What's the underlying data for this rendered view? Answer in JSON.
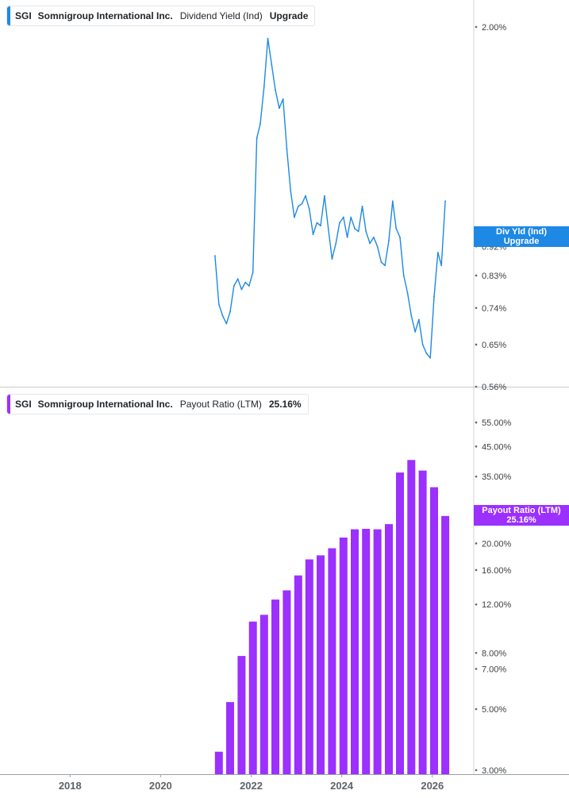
{
  "chart_data": [
    {
      "type": "line",
      "ticker": "SGI",
      "company": "Somnigroup International Inc.",
      "metric": "Dividend Yield (Ind)",
      "value_label": "Upgrade",
      "tag_label": "Div Yld (Ind)",
      "tag_value": "Upgrade",
      "color": "#1e88e5",
      "y_scale": "log",
      "ylim": [
        0.56,
        2.2
      ],
      "y_ticks": [
        "2.00%",
        "0.92%",
        "0.83%",
        "0.74%",
        "0.65%",
        "0.56%"
      ],
      "x": [
        "2021-03",
        "2021-04",
        "2021-05",
        "2021-06",
        "2021-07",
        "2021-08",
        "2021-09",
        "2021-10",
        "2021-11",
        "2021-12",
        "2022-01",
        "2022-02",
        "2022-03",
        "2022-04",
        "2022-05",
        "2022-06",
        "2022-07",
        "2022-08",
        "2022-09",
        "2022-10",
        "2022-11",
        "2022-12",
        "2023-01",
        "2023-02",
        "2023-03",
        "2023-04",
        "2023-05",
        "2023-06",
        "2023-07",
        "2023-08",
        "2023-09",
        "2023-10",
        "2023-11",
        "2023-12",
        "2024-01",
        "2024-02",
        "2024-03",
        "2024-04",
        "2024-05",
        "2024-06",
        "2024-07",
        "2024-08",
        "2024-09",
        "2024-10",
        "2024-11",
        "2024-12",
        "2025-01",
        "2025-02",
        "2025-03",
        "2025-04",
        "2025-05",
        "2025-06",
        "2025-07",
        "2025-08",
        "2025-09",
        "2025-10",
        "2025-11",
        "2025-12",
        "2026-01",
        "2026-02",
        "2026-03",
        "2026-04"
      ],
      "values": [
        0.89,
        0.75,
        0.72,
        0.7,
        0.73,
        0.8,
        0.82,
        0.79,
        0.81,
        0.8,
        0.84,
        1.35,
        1.42,
        1.62,
        1.92,
        1.75,
        1.6,
        1.5,
        1.55,
        1.3,
        1.12,
        1.02,
        1.06,
        1.07,
        1.1,
        1.05,
        0.96,
        1.0,
        0.99,
        1.1,
        0.98,
        0.88,
        0.93,
        1.0,
        1.02,
        0.95,
        1.02,
        0.98,
        0.97,
        1.06,
        0.97,
        0.93,
        0.95,
        0.92,
        0.87,
        0.86,
        0.94,
        1.08,
        0.98,
        0.95,
        0.83,
        0.78,
        0.72,
        0.68,
        0.71,
        0.65,
        0.63,
        0.62,
        0.77,
        0.9,
        0.86,
        1.08
      ]
    },
    {
      "type": "bar",
      "ticker": "SGI",
      "company": "Somnigroup International Inc.",
      "metric": "Payout Ratio (LTM)",
      "value_label": "25.16%",
      "tag_label": "Payout Ratio (LTM)",
      "tag_value": "25.16%",
      "color": "#9b30ff",
      "y_scale": "log",
      "ylim": [
        2.9,
        60
      ],
      "y_ticks": [
        "55.00%",
        "45.00%",
        "35.00%",
        "20.00%",
        "16.00%",
        "12.00%",
        "8.00%",
        "7.00%",
        "5.00%",
        "3.00%"
      ],
      "x": [
        "2021-04",
        "2021-07",
        "2021-10",
        "2022-01",
        "2022-04",
        "2022-07",
        "2022-10",
        "2023-01",
        "2023-04",
        "2023-07",
        "2023-10",
        "2024-01",
        "2024-04",
        "2024-07",
        "2024-10",
        "2025-01",
        "2025-04",
        "2025-07",
        "2025-10",
        "2026-01",
        "2026-04"
      ],
      "values": [
        3.5,
        5.3,
        7.8,
        10.4,
        11.0,
        12.5,
        13.5,
        15.3,
        17.5,
        18.1,
        19.2,
        21.0,
        22.5,
        22.6,
        22.5,
        23.5,
        36.2,
        40.2,
        36.8,
        32.0,
        25.16
      ]
    }
  ],
  "x_axis": {
    "tick_labels": [
      "2018",
      "2020",
      "2022",
      "2024",
      "2026"
    ],
    "range": [
      "2016-06-15",
      "2026-12-01"
    ]
  }
}
